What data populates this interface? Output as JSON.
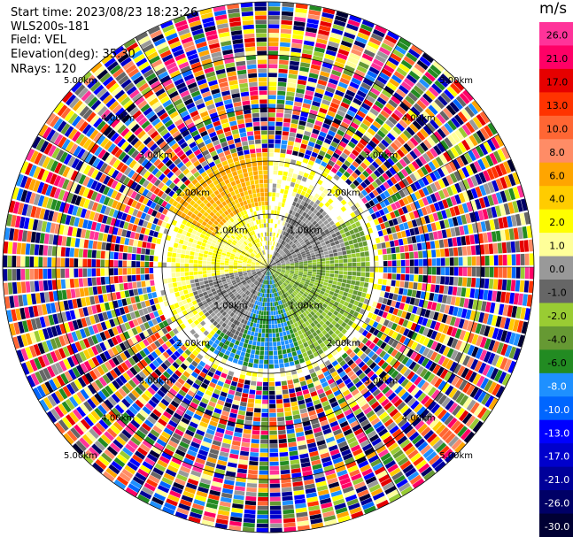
{
  "header": {
    "start_time": "Start time: 2023/08/23 18:23:26",
    "instrument": "WLS200s-181",
    "field": "Field: VEL",
    "elevation": "Elevation(deg): 35.30",
    "nrays": "NRays: 120"
  },
  "colorbar": {
    "unit": "m/s",
    "labels": [
      "26.0",
      "21.0",
      "17.0",
      "13.0",
      "10.0",
      "8.0",
      "6.0",
      "4.0",
      "2.0",
      "1.0",
      "0.0",
      "-1.0",
      "-2.0",
      "-4.0",
      "-6.0",
      "-8.0",
      "-10.0",
      "-13.0",
      "-17.0",
      "-21.0",
      "-26.0",
      "-30.0"
    ],
    "colors": [
      "#ff3399",
      "#ff0066",
      "#e60000",
      "#ff3300",
      "#ff6633",
      "#ff8c66",
      "#ffa500",
      "#ffcc00",
      "#ffff00",
      "#ffff99",
      "#999999",
      "#666666",
      "#99cc33",
      "#669933",
      "#228b22",
      "#1e90ff",
      "#0066ff",
      "#0000ff",
      "#0000cc",
      "#000099",
      "#000066",
      "#000033"
    ]
  },
  "chart_data": {
    "type": "heatmap",
    "projection": "polar PPI",
    "title": "",
    "unit": "m/s",
    "range_ring_labels": [
      "1.00km",
      "2.00km",
      "3.00km",
      "4.00km",
      "5.00km"
    ],
    "range_rings_km": [
      1,
      2,
      3,
      4,
      5
    ],
    "max_range_km": 5,
    "azimuth_lines_deg": [
      0,
      30,
      60,
      90,
      120,
      150,
      180,
      210,
      240,
      270,
      300,
      330
    ],
    "nrays": 120,
    "regions": [
      {
        "range_km": [
          0,
          1.8
        ],
        "azimuth_deg": [
          230,
          340
        ],
        "value_ms": 2.0
      },
      {
        "range_km": [
          1.2,
          2.2
        ],
        "azimuth_deg": [
          300,
          360
        ],
        "value_ms": 6.0
      },
      {
        "range_km": [
          0,
          1.9
        ],
        "azimuth_deg": [
          60,
          160
        ],
        "value_ms": -2.0
      },
      {
        "range_km": [
          0,
          1.9
        ],
        "azimuth_deg": [
          160,
          220
        ],
        "value_ms": -6.0
      },
      {
        "range_km": [
          0,
          1.5
        ],
        "azimuth_deg": [
          20,
          80
        ],
        "value_ms": 0.0
      },
      {
        "range_km": [
          0,
          1.5
        ],
        "azimuth_deg": [
          200,
          260
        ],
        "value_ms": 0.0
      },
      {
        "range_km": [
          2.2,
          5.0
        ],
        "azimuth_deg": [
          0,
          360
        ],
        "value_ms": "noise"
      }
    ]
  }
}
